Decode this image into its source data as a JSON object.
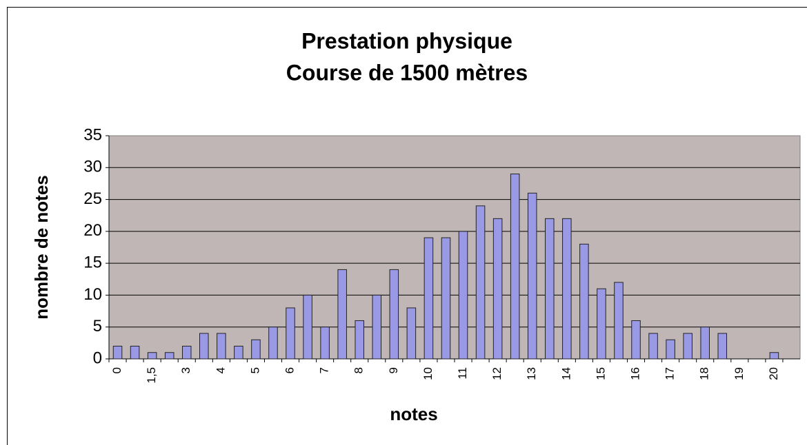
{
  "chart_data": {
    "type": "bar",
    "title": "Prestation physique",
    "subtitle": "Course de 1500 mètres",
    "x_label": "notes",
    "y_label": "nombre de notes",
    "categories": [
      "0",
      null,
      "1,5",
      null,
      "3",
      null,
      "4",
      null,
      "5",
      null,
      "6",
      null,
      "7",
      null,
      "8",
      null,
      "9",
      null,
      "10",
      null,
      "11",
      null,
      "12",
      null,
      "13",
      null,
      "14",
      null,
      "15",
      null,
      "16",
      null,
      "17",
      null,
      "18",
      null,
      "19",
      null,
      "20",
      null
    ],
    "values": [
      2,
      2,
      1,
      1,
      2,
      4,
      4,
      2,
      3,
      5,
      8,
      10,
      5,
      14,
      6,
      10,
      14,
      8,
      19,
      19,
      20,
      24,
      22,
      29,
      26,
      22,
      22,
      18,
      11,
      12,
      6,
      4,
      3,
      4,
      5,
      4,
      0,
      0,
      1,
      0
    ],
    "color": "#9999e6",
    "ylim": [
      0,
      35
    ],
    "yticks": [
      0,
      5,
      10,
      15,
      20,
      25,
      30,
      35
    ],
    "grid": true
  }
}
